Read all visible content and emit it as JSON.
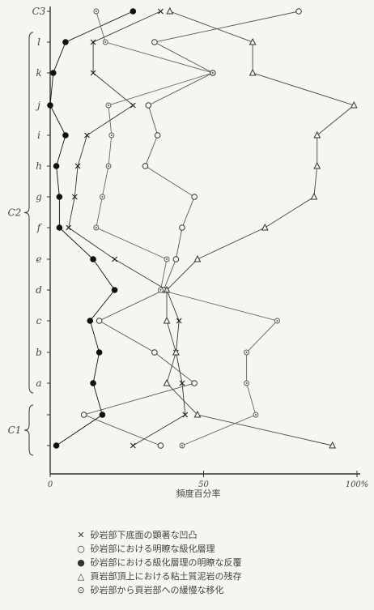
{
  "chart_data": {
    "type": "line",
    "xlabel": "頻度百分率",
    "x_ticks": [
      {
        "value": 0,
        "label": "0"
      },
      {
        "value": 50,
        "label": "50"
      },
      {
        "value": 100,
        "label": "100%"
      }
    ],
    "xlim": [
      0,
      100
    ],
    "rows": [
      "C3",
      "l",
      "k",
      "j",
      "i",
      "h",
      "g",
      "f",
      "e",
      "d",
      "c",
      "b",
      "a",
      "C1-1",
      "C1-2"
    ],
    "row_labels": [
      {
        "row": "C3",
        "label": "C3"
      },
      {
        "row": "l",
        "label": "l"
      },
      {
        "row": "k",
        "label": "k"
      },
      {
        "row": "j",
        "label": "j"
      },
      {
        "row": "i",
        "label": "i"
      },
      {
        "row": "h",
        "label": "h"
      },
      {
        "row": "g",
        "label": "g"
      },
      {
        "row": "f",
        "label": "f"
      },
      {
        "row": "e",
        "label": "e"
      },
      {
        "row": "d",
        "label": "d"
      },
      {
        "row": "c",
        "label": "c"
      },
      {
        "row": "b",
        "label": "b"
      },
      {
        "row": "a",
        "label": "a"
      }
    ],
    "groups": [
      {
        "label": "C2",
        "from": "l",
        "to": "a"
      },
      {
        "label": "C1",
        "from": "C1-1",
        "to": "C1-2"
      }
    ],
    "series": [
      {
        "name": "砂岩部下底面の顕著な凹凸",
        "symbol": "cross",
        "values": [
          36,
          14,
          14,
          27,
          12,
          9,
          8,
          6,
          21,
          38,
          42,
          41,
          43,
          44,
          27
        ]
      },
      {
        "name": "砂岩部における明瞭な級化層理",
        "symbol": "open-circle",
        "values": [
          81,
          34,
          53,
          32,
          35,
          31,
          47,
          43,
          41,
          37,
          16,
          34,
          47,
          11,
          36
        ]
      },
      {
        "name": "砂岩部における級化層理の明瞭な反覆",
        "symbol": "filled-circle",
        "values": [
          27,
          5,
          1,
          0,
          5,
          2,
          3,
          3,
          14,
          21,
          13,
          16,
          14,
          17,
          2
        ]
      },
      {
        "name": "頁岩部頂上における粘土質泥岩の残存",
        "symbol": "triangle",
        "values": [
          39,
          66,
          66,
          99,
          87,
          87,
          86,
          70,
          48,
          38,
          38,
          41,
          38,
          48,
          92
        ]
      },
      {
        "name": "砂岩部から頁岩部への緩慢な移化",
        "symbol": "dot-circle",
        "values": [
          15,
          18,
          53,
          19,
          20,
          19,
          17,
          15,
          38,
          36,
          74,
          64,
          64,
          67,
          43
        ]
      }
    ],
    "legend_placement": "bottom",
    "grid": false
  }
}
